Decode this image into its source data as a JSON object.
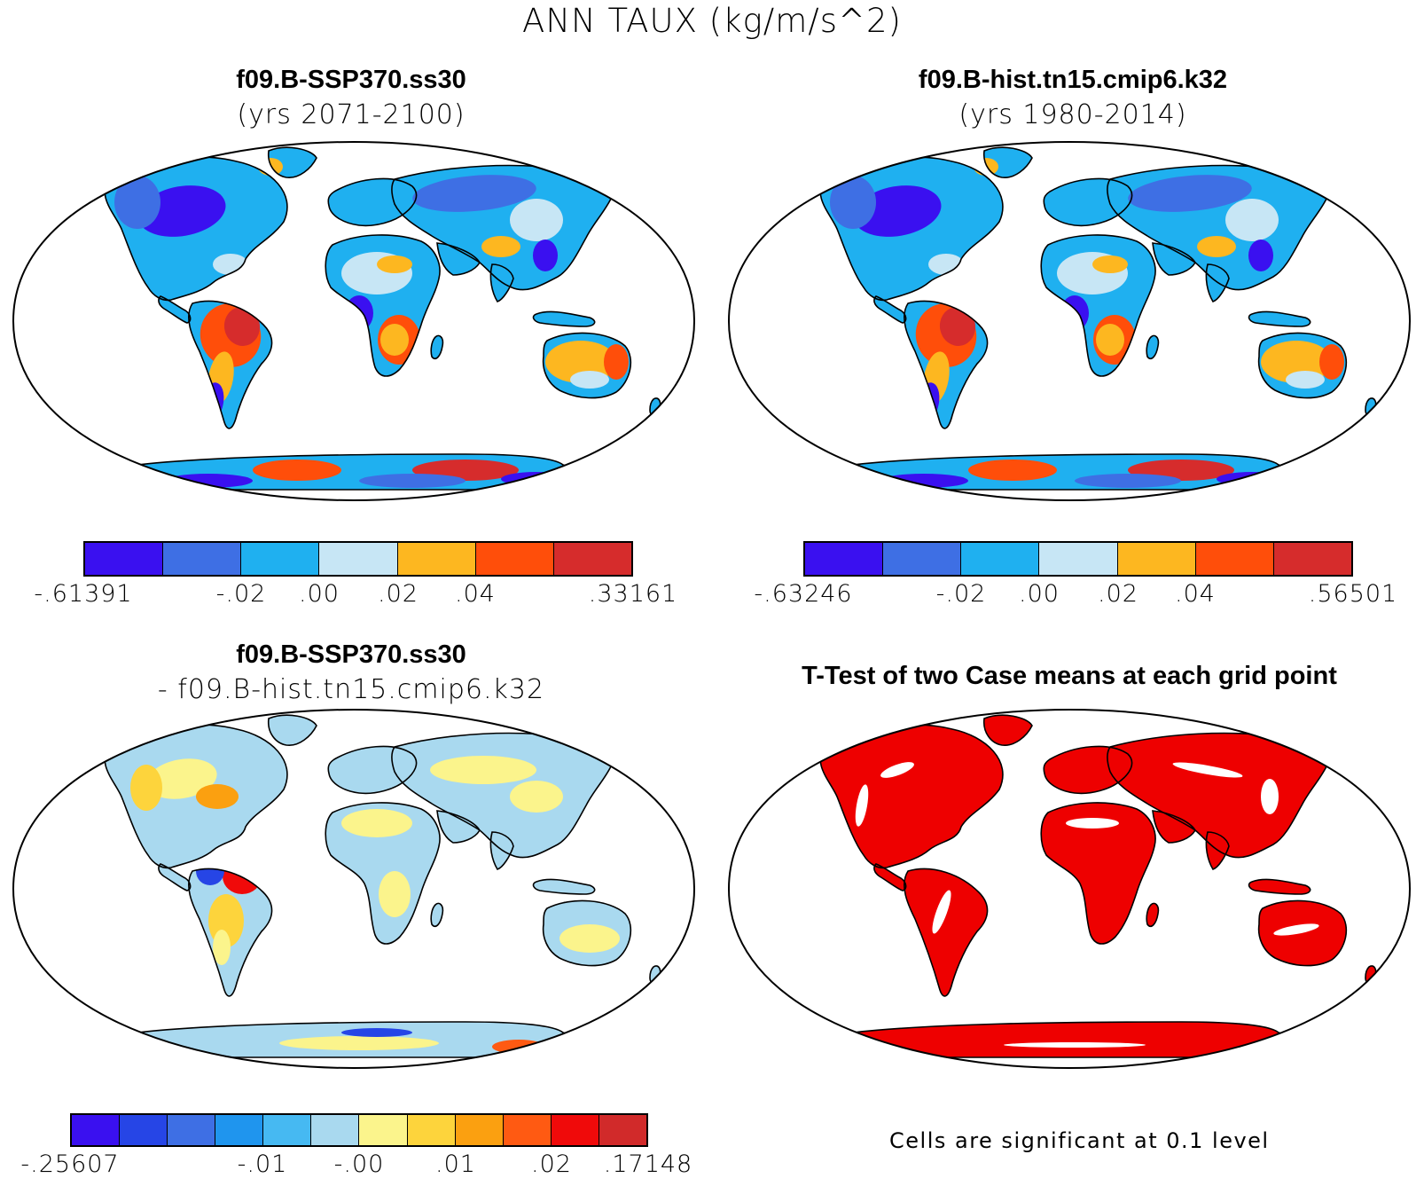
{
  "title": "ANN TAUX (kg/m/s^2)",
  "colors": {
    "scale7": [
      "#3a10f0",
      "#3e6fe4",
      "#1fb0f0",
      "#c7e6f5",
      "#fdb720",
      "#ff4e0a",
      "#d62c2c"
    ],
    "scale12": [
      "#3a10f0",
      "#2645e6",
      "#3e6fe4",
      "#1f95ee",
      "#46b9f2",
      "#a9d9ef",
      "#fbf48c",
      "#fdd43c",
      "#fba010",
      "#ff5a12",
      "#f00a0a",
      "#d12a2a"
    ],
    "significant": "#ee0000"
  },
  "panels": {
    "top_left": {
      "title": "f09.B-SSP370.ss30",
      "subtitle": "(yrs 2071-2100)",
      "colorbar_labels": [
        "-.61391",
        "-.02",
        ".00",
        ".02",
        ".04",
        ".33161"
      ]
    },
    "top_right": {
      "title": "f09.B-hist.tn15.cmip6.k32",
      "subtitle": "(yrs 1980-2014)",
      "colorbar_labels": [
        "-.63246",
        "-.02",
        ".00",
        ".02",
        ".04",
        ".56501"
      ]
    },
    "bottom_left": {
      "title": "f09.B-SSP370.ss30",
      "subtitle": "- f09.B-hist.tn15.cmip6.k32",
      "colorbar_labels": [
        "-.25607",
        "-.01",
        "-.00",
        ".01",
        ".02",
        ".17148"
      ]
    },
    "bottom_right": {
      "title": "T-Test of two Case means at each grid point",
      "note": "Cells are significant at 0.1 level"
    }
  }
}
